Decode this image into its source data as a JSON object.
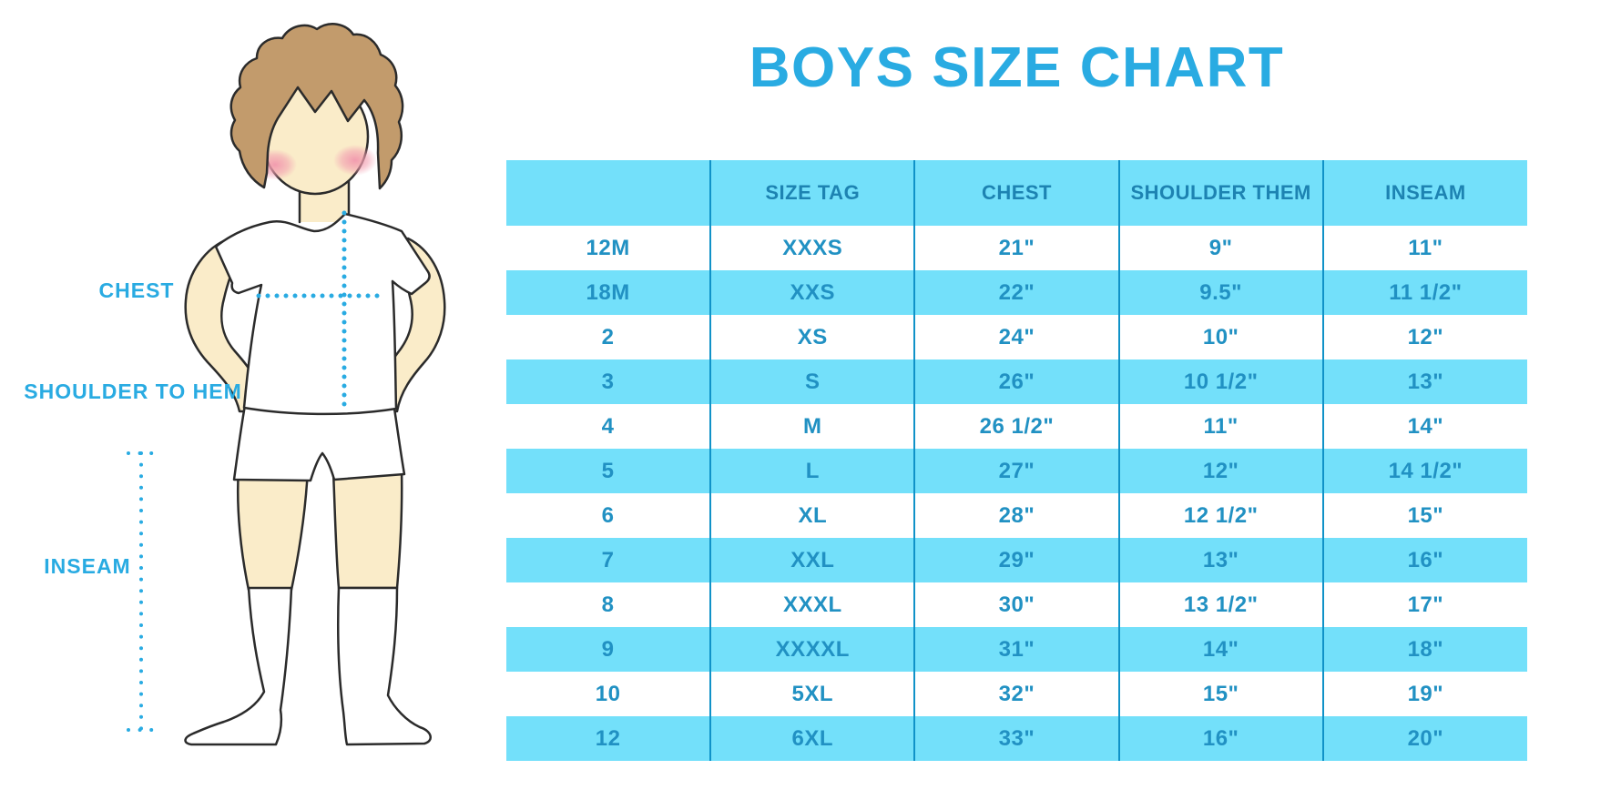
{
  "title": "BOYS SIZE CHART",
  "figure": {
    "labels": {
      "chest": "CHEST",
      "shoulder_to_hem": "SHOULDER TO HEM",
      "inseam": "INSEAM"
    }
  },
  "table": {
    "columns": [
      "",
      "SIZE TAG",
      "CHEST",
      "SHOULDER THEM",
      "INSEAM"
    ],
    "rows": [
      [
        "12M",
        "XXXS",
        "21\"",
        "9\"",
        "11\""
      ],
      [
        "18M",
        "XXS",
        "22\"",
        "9.5\"",
        "11 1/2\""
      ],
      [
        "2",
        "XS",
        "24\"",
        "10\"",
        "12\""
      ],
      [
        "3",
        "S",
        "26\"",
        "10 1/2\"",
        "13\""
      ],
      [
        "4",
        "M",
        "26 1/2\"",
        "11\"",
        "14\""
      ],
      [
        "5",
        "L",
        "27\"",
        "12\"",
        "14 1/2\""
      ],
      [
        "6",
        "XL",
        "28\"",
        "12 1/2\"",
        "15\""
      ],
      [
        "7",
        "XXL",
        "29\"",
        "13\"",
        "16\""
      ],
      [
        "8",
        "XXXL",
        "30\"",
        "13 1/2\"",
        "17\""
      ],
      [
        "9",
        "XXXXL",
        "31\"",
        "14\"",
        "18\""
      ],
      [
        "10",
        "5XL",
        "32\"",
        "15\"",
        "19\""
      ],
      [
        "12",
        "6XL",
        "33\"",
        "16\"",
        "20\""
      ]
    ]
  },
  "colors": {
    "accent": "#29ABE2",
    "stripe": "#73E0FA",
    "divider": "#1092C8",
    "header_text": "#1D83B2",
    "cell_text": "#2191C3",
    "skin": "#FAECC9",
    "hair": "#C29B6C",
    "blush": "#F29CAF",
    "outline": "#2B2B2B"
  }
}
